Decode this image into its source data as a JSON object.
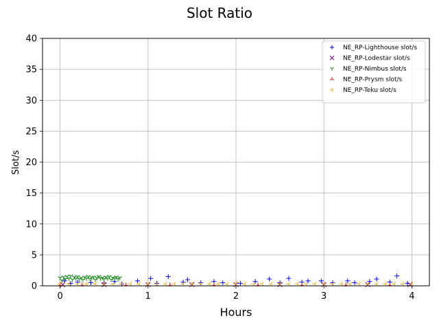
{
  "chart_data": {
    "type": "scatter",
    "title": "Slot Ratio",
    "xlabel": "Hours",
    "ylabel": "Slot/s",
    "xlim": [
      -0.2,
      4.2
    ],
    "ylim": [
      0,
      40
    ],
    "xticks": [
      0,
      1,
      2,
      3,
      4
    ],
    "yticks": [
      0,
      5,
      10,
      15,
      20,
      25,
      30,
      35,
      40
    ],
    "grid": true,
    "legend_position": "top-right",
    "series": [
      {
        "name": "NE_RP-Lighthouse slot/s",
        "marker": "+",
        "color": "#0000ff",
        "points": [
          [
            0.05,
            0.8
          ],
          [
            0.12,
            0.4
          ],
          [
            0.2,
            0.6
          ],
          [
            0.35,
            0.5
          ],
          [
            0.5,
            0.4
          ],
          [
            0.62,
            0.7
          ],
          [
            0.7,
            0.3
          ],
          [
            0.88,
            0.8
          ],
          [
            1.03,
            1.2
          ],
          [
            1.1,
            0.4
          ],
          [
            1.23,
            1.5
          ],
          [
            1.4,
            0.6
          ],
          [
            1.45,
            1.0
          ],
          [
            1.6,
            0.5
          ],
          [
            1.75,
            0.7
          ],
          [
            1.85,
            0.5
          ],
          [
            2.05,
            0.4
          ],
          [
            2.22,
            0.7
          ],
          [
            2.38,
            1.1
          ],
          [
            2.5,
            0.5
          ],
          [
            2.6,
            1.2
          ],
          [
            2.75,
            0.6
          ],
          [
            2.82,
            0.8
          ],
          [
            2.97,
            0.8
          ],
          [
            3.1,
            0.5
          ],
          [
            3.27,
            0.8
          ],
          [
            3.35,
            0.5
          ],
          [
            3.52,
            0.7
          ],
          [
            3.6,
            1.1
          ],
          [
            3.75,
            0.6
          ],
          [
            3.83,
            1.6
          ],
          [
            3.95,
            0.4
          ]
        ]
      },
      {
        "name": "NE_RP-Lodestar slot/s",
        "marker": "x",
        "color": "#800080",
        "points": [
          [
            0.03,
            0.2
          ],
          [
            0.5,
            0.2
          ],
          [
            1.0,
            0.2
          ],
          [
            1.5,
            0.2
          ],
          [
            2.0,
            0.2
          ],
          [
            2.5,
            0.2
          ],
          [
            3.0,
            0.2
          ],
          [
            3.5,
            0.2
          ],
          [
            3.98,
            0.2
          ]
        ]
      },
      {
        "name": "NE_RP-Nimbus slot/s",
        "marker": "tri_down",
        "color": "#008000",
        "points": [
          [
            0.0,
            1.3
          ],
          [
            0.02,
            0.9
          ],
          [
            0.04,
            1.4
          ],
          [
            0.06,
            1.1
          ],
          [
            0.08,
            1.5
          ],
          [
            0.1,
            1.2
          ],
          [
            0.12,
            1.6
          ],
          [
            0.14,
            1.0
          ],
          [
            0.16,
            1.4
          ],
          [
            0.18,
            1.2
          ],
          [
            0.2,
            1.5
          ],
          [
            0.22,
            1.1
          ],
          [
            0.24,
            1.3
          ],
          [
            0.26,
            1.0
          ],
          [
            0.28,
            1.4
          ],
          [
            0.3,
            1.2
          ],
          [
            0.32,
            1.5
          ],
          [
            0.34,
            1.1
          ],
          [
            0.36,
            1.3
          ],
          [
            0.38,
            1.4
          ],
          [
            0.4,
            1.0
          ],
          [
            0.42,
            1.3
          ],
          [
            0.44,
            1.5
          ],
          [
            0.46,
            1.2
          ],
          [
            0.48,
            1.3
          ],
          [
            0.5,
            1.1
          ],
          [
            0.52,
            1.4
          ],
          [
            0.54,
            1.2
          ],
          [
            0.56,
            1.5
          ],
          [
            0.58,
            1.0
          ],
          [
            0.6,
            1.3
          ],
          [
            0.62,
            1.2
          ],
          [
            0.64,
            1.4
          ],
          [
            0.66,
            1.1
          ],
          [
            0.68,
            1.3
          ]
        ]
      },
      {
        "name": "NE_RP-Prysm slot/s",
        "marker": "tri_up",
        "color": "#ff0000",
        "points": [
          [
            0.0,
            0.15
          ],
          [
            0.25,
            0.15
          ],
          [
            0.75,
            0.15
          ],
          [
            1.25,
            0.15
          ],
          [
            1.75,
            0.15
          ],
          [
            2.25,
            0.15
          ],
          [
            2.75,
            0.15
          ],
          [
            3.25,
            0.15
          ],
          [
            3.75,
            0.15
          ]
        ]
      },
      {
        "name": "NE_RP-Teku slot/s",
        "marker": "tri_left",
        "color": "#ffa500",
        "points_note": "",
        "points": [
          [
            0.0,
            0.3
          ],
          [
            0.1,
            0.3
          ],
          [
            0.2,
            0.3
          ],
          [
            0.3,
            0.3
          ],
          [
            0.4,
            0.3
          ],
          [
            0.5,
            0.3
          ],
          [
            0.6,
            0.3
          ],
          [
            0.7,
            0.3
          ],
          [
            0.8,
            0.3
          ],
          [
            0.9,
            0.3
          ],
          [
            1.0,
            0.3
          ],
          [
            1.1,
            0.3
          ],
          [
            1.2,
            0.3
          ],
          [
            1.3,
            0.3
          ],
          [
            1.4,
            0.3
          ],
          [
            1.5,
            0.3
          ],
          [
            1.6,
            0.3
          ],
          [
            1.7,
            0.3
          ],
          [
            1.8,
            0.3
          ],
          [
            1.9,
            0.3
          ],
          [
            2.0,
            0.3
          ],
          [
            2.1,
            0.3
          ],
          [
            2.2,
            0.3
          ],
          [
            2.3,
            0.3
          ],
          [
            2.4,
            0.3
          ],
          [
            2.5,
            0.3
          ],
          [
            2.6,
            0.3
          ],
          [
            2.7,
            0.3
          ],
          [
            2.8,
            0.3
          ],
          [
            2.9,
            0.3
          ],
          [
            3.0,
            0.3
          ],
          [
            3.1,
            0.3
          ],
          [
            3.2,
            0.3
          ],
          [
            3.3,
            0.3
          ],
          [
            3.4,
            0.3
          ],
          [
            3.5,
            0.3
          ],
          [
            3.6,
            0.3
          ],
          [
            3.7,
            0.3
          ],
          [
            3.8,
            0.3
          ],
          [
            3.9,
            0.3
          ],
          [
            4.0,
            0.3
          ]
        ]
      }
    ]
  }
}
